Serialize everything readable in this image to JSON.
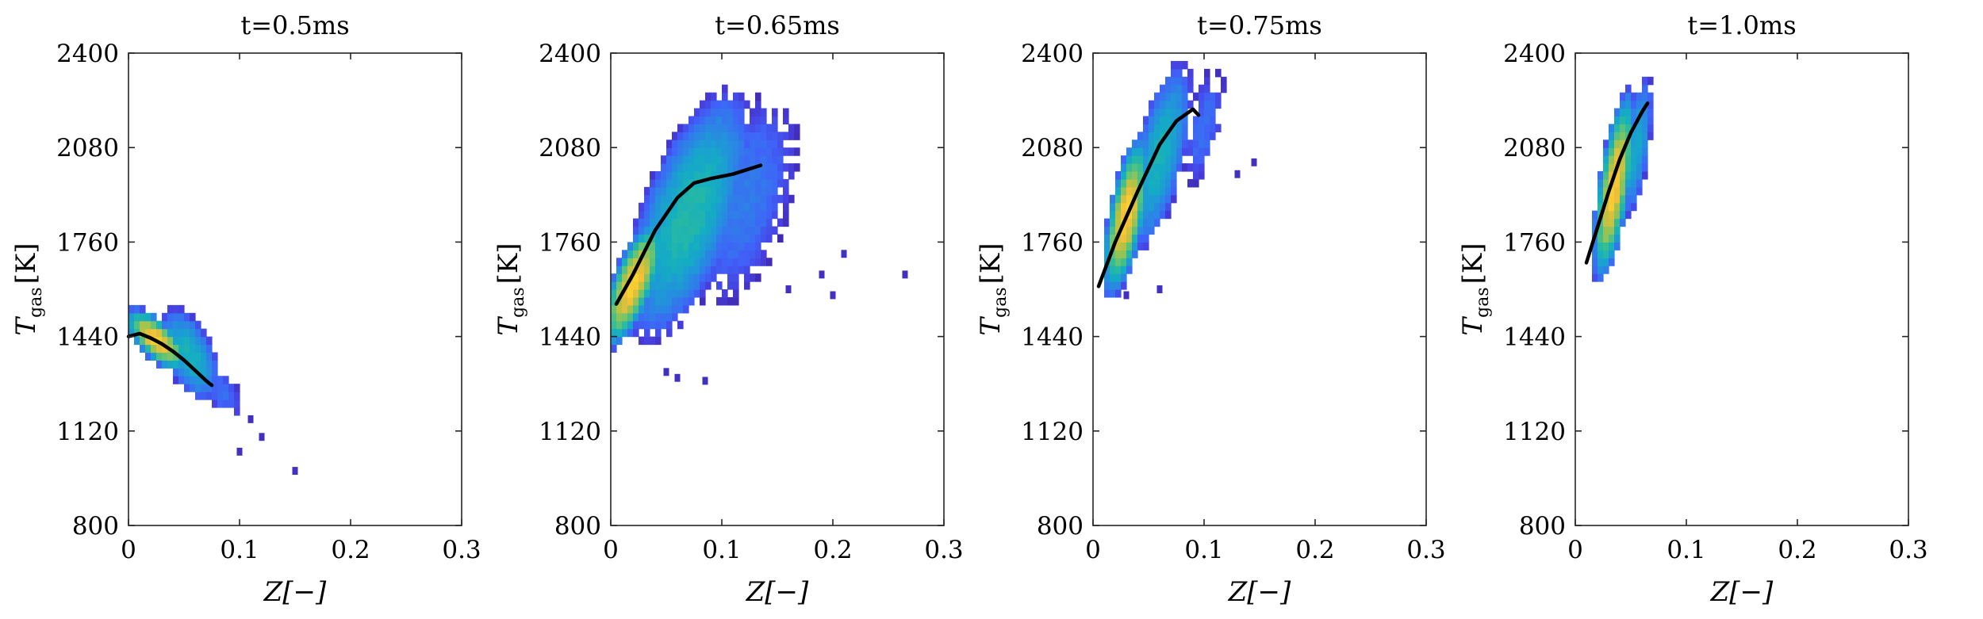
{
  "figure": {
    "colormap": [
      "#3e26a8",
      "#4740e0",
      "#3f63f8",
      "#2f7fe9",
      "#1e99d7",
      "#14aec1",
      "#2cbb9c",
      "#6ac56f",
      "#b3c245",
      "#f5bf38",
      "#f9e029"
    ]
  },
  "chart_data": [
    {
      "type": "heatmap",
      "title": "t=0.5ms",
      "xlabel": "Z[−]",
      "ylabel_main": "T",
      "ylabel_sub": "gas",
      "ylabel_unit": "[K]",
      "xlim": [
        0,
        0.3
      ],
      "ylim": [
        800,
        2400
      ],
      "xticks": [
        "0",
        "0.1",
        "0.2",
        "0.3"
      ],
      "yticks": [
        "800",
        "1120",
        "1440",
        "1760",
        "2080",
        "2400"
      ],
      "line_color": "#000000",
      "mean_curve": [
        [
          0.0,
          1440
        ],
        [
          0.01,
          1450
        ],
        [
          0.02,
          1435
        ],
        [
          0.03,
          1415
        ],
        [
          0.04,
          1390
        ],
        [
          0.05,
          1360
        ],
        [
          0.06,
          1325
        ],
        [
          0.07,
          1290
        ],
        [
          0.075,
          1275
        ]
      ],
      "density": [
        {
          "center": [
            0.025,
            1430
          ],
          "halfwidth": [
            0.03,
            80
          ],
          "slope": -2500,
          "intensity": 1.0
        },
        {
          "center": [
            0.055,
            1380
          ],
          "halfwidth": [
            0.028,
            140
          ],
          "slope": -3000,
          "intensity": 0.55
        },
        {
          "center": [
            0.085,
            1250
          ],
          "halfwidth": [
            0.018,
            90
          ],
          "slope": -2800,
          "intensity": 0.25
        }
      ],
      "outliers": [
        [
          0.15,
          985
        ],
        [
          0.12,
          1100
        ],
        [
          0.1,
          1050
        ],
        [
          0.11,
          1160
        ]
      ]
    },
    {
      "type": "heatmap",
      "title": "t=0.65ms",
      "xlabel": "Z[−]",
      "ylabel_main": "T",
      "ylabel_sub": "gas",
      "ylabel_unit": "[K]",
      "xlim": [
        0,
        0.3
      ],
      "ylim": [
        800,
        2400
      ],
      "xticks": [
        "0",
        "0.1",
        "0.2",
        "0.3"
      ],
      "yticks": [
        "800",
        "1120",
        "1440",
        "1760",
        "2080",
        "2400"
      ],
      "line_color": "#000000",
      "mean_curve": [
        [
          0.005,
          1550
        ],
        [
          0.02,
          1650
        ],
        [
          0.04,
          1800
        ],
        [
          0.06,
          1910
        ],
        [
          0.075,
          1960
        ],
        [
          0.09,
          1975
        ],
        [
          0.11,
          1990
        ],
        [
          0.135,
          2020
        ]
      ],
      "density": [
        {
          "center": [
            0.02,
            1620
          ],
          "halfwidth": [
            0.03,
            160
          ],
          "slope": 5500,
          "intensity": 1.0
        },
        {
          "center": [
            0.07,
            1850
          ],
          "halfwidth": [
            0.06,
            340
          ],
          "slope": 4500,
          "intensity": 0.6
        },
        {
          "center": [
            0.12,
            1900
          ],
          "halfwidth": [
            0.05,
            320
          ],
          "slope": 3500,
          "intensity": 0.3
        }
      ],
      "outliers": [
        [
          0.265,
          1650
        ],
        [
          0.21,
          1720
        ],
        [
          0.2,
          1580
        ],
        [
          0.19,
          1650
        ],
        [
          0.16,
          1600
        ],
        [
          0.085,
          1290
        ],
        [
          0.05,
          1320
        ],
        [
          0.06,
          1300
        ]
      ]
    },
    {
      "type": "heatmap",
      "title": "t=0.75ms",
      "xlabel": "Z[−]",
      "ylabel_main": "T",
      "ylabel_sub": "gas",
      "ylabel_unit": "[K]",
      "xlim": [
        0,
        0.3
      ],
      "ylim": [
        800,
        2400
      ],
      "xticks": [
        "0",
        "0.1",
        "0.2",
        "0.3"
      ],
      "yticks": [
        "800",
        "1120",
        "1440",
        "1760",
        "2080",
        "2400"
      ],
      "line_color": "#000000",
      "mean_curve": [
        [
          0.005,
          1610
        ],
        [
          0.02,
          1760
        ],
        [
          0.04,
          1930
        ],
        [
          0.06,
          2090
        ],
        [
          0.075,
          2170
        ],
        [
          0.09,
          2210
        ],
        [
          0.095,
          2190
        ]
      ],
      "density": [
        {
          "center": [
            0.03,
            1850
          ],
          "halfwidth": [
            0.022,
            220
          ],
          "slope": 8000,
          "intensity": 1.0
        },
        {
          "center": [
            0.06,
            2050
          ],
          "halfwidth": [
            0.03,
            260
          ],
          "slope": 7000,
          "intensity": 0.55
        },
        {
          "center": [
            0.1,
            2150
          ],
          "halfwidth": [
            0.02,
            180
          ],
          "slope": 5000,
          "intensity": 0.25
        }
      ],
      "outliers": [
        [
          0.145,
          2030
        ],
        [
          0.13,
          1990
        ],
        [
          0.06,
          1600
        ],
        [
          0.03,
          1580
        ]
      ]
    },
    {
      "type": "heatmap",
      "title": "t=1.0ms",
      "xlabel": "Z[−]",
      "ylabel_main": "T",
      "ylabel_sub": "gas",
      "ylabel_unit": "[K]",
      "xlim": [
        0,
        0.3
      ],
      "ylim": [
        800,
        2400
      ],
      "xticks": [
        "0",
        "0.1",
        "0.2",
        "0.3"
      ],
      "yticks": [
        "800",
        "1120",
        "1440",
        "1760",
        "2080",
        "2400"
      ],
      "line_color": "#000000",
      "mean_curve": [
        [
          0.01,
          1690
        ],
        [
          0.02,
          1810
        ],
        [
          0.03,
          1930
        ],
        [
          0.04,
          2040
        ],
        [
          0.05,
          2130
        ],
        [
          0.06,
          2200
        ],
        [
          0.065,
          2230
        ]
      ],
      "density": [
        {
          "center": [
            0.035,
            1950
          ],
          "halfwidth": [
            0.02,
            250
          ],
          "slope": 11000,
          "intensity": 1.0
        },
        {
          "center": [
            0.055,
            2080
          ],
          "halfwidth": [
            0.015,
            200
          ],
          "slope": 10000,
          "intensity": 0.5
        }
      ],
      "outliers": []
    }
  ]
}
